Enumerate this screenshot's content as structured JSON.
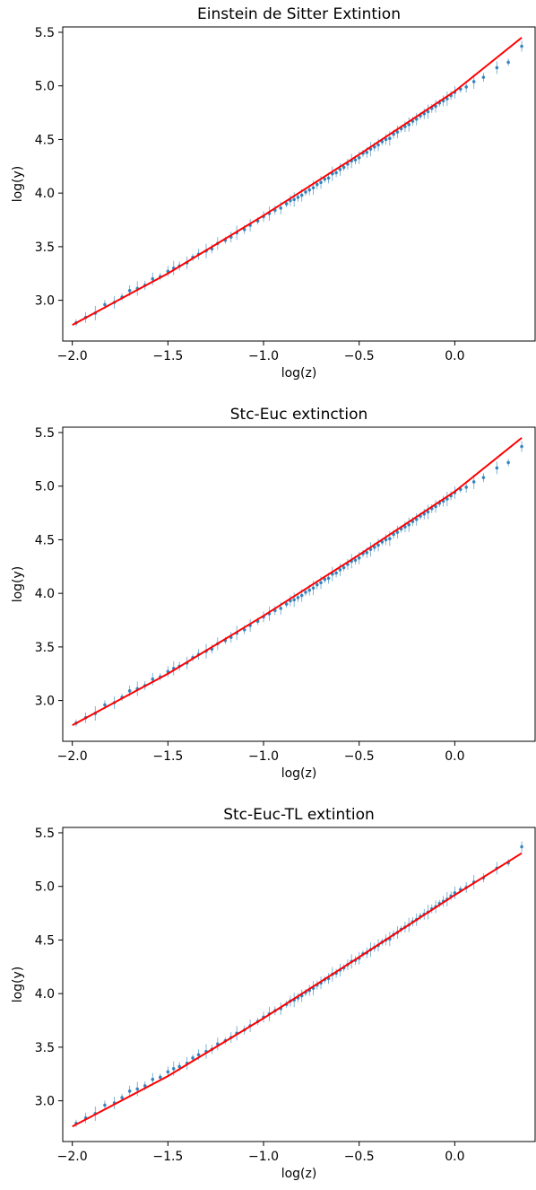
{
  "colors": {
    "points": "#1f77b4",
    "fit": "#ff0000",
    "axes": "#000000"
  },
  "chart_data": [
    {
      "type": "scatter",
      "title": "Einstein de Sitter Extintion",
      "xlabel": "log(z)",
      "ylabel": "log(y)",
      "xlim": [
        -2.05,
        0.42
      ],
      "ylim": [
        2.62,
        5.55
      ],
      "xticks": [
        -2.0,
        -1.5,
        -1.0,
        -0.5,
        0.0
      ],
      "xtick_labels": [
        "−2.0",
        "−1.5",
        "−1.0",
        "−0.5",
        "0.0"
      ],
      "yticks": [
        3.0,
        3.5,
        4.0,
        4.5,
        5.0,
        5.5
      ],
      "ytick_labels": [
        "3.0",
        "3.5",
        "4.0",
        "4.5",
        "5.0",
        "5.5"
      ],
      "grid": false,
      "legend": "none",
      "series": [
        {
          "kind": "errorbar-points",
          "x": [
            -1.98,
            -1.93,
            -1.88,
            -1.83,
            -1.78,
            -1.74,
            -1.7,
            -1.66,
            -1.62,
            -1.58,
            -1.54,
            -1.5,
            -1.47,
            -1.44,
            -1.4,
            -1.37,
            -1.34,
            -1.3,
            -1.27,
            -1.24,
            -1.2,
            -1.17,
            -1.14,
            -1.1,
            -1.07,
            -1.03,
            -1.0,
            -0.97,
            -0.94,
            -0.91,
            -0.88,
            -0.86,
            -0.84,
            -0.82,
            -0.8,
            -0.78,
            -0.76,
            -0.74,
            -0.72,
            -0.7,
            -0.68,
            -0.66,
            -0.64,
            -0.62,
            -0.6,
            -0.58,
            -0.56,
            -0.54,
            -0.52,
            -0.5,
            -0.48,
            -0.46,
            -0.44,
            -0.42,
            -0.4,
            -0.38,
            -0.36,
            -0.34,
            -0.32,
            -0.3,
            -0.28,
            -0.26,
            -0.24,
            -0.22,
            -0.2,
            -0.18,
            -0.16,
            -0.14,
            -0.12,
            -0.1,
            -0.08,
            -0.06,
            -0.04,
            -0.02,
            0.0,
            0.03,
            0.06,
            0.1,
            0.15,
            0.22,
            0.28,
            0.35
          ],
          "y": [
            2.79,
            2.84,
            2.88,
            2.96,
            2.98,
            3.03,
            3.09,
            3.11,
            3.14,
            3.2,
            3.22,
            3.27,
            3.3,
            3.32,
            3.35,
            3.4,
            3.43,
            3.46,
            3.48,
            3.53,
            3.56,
            3.59,
            3.63,
            3.66,
            3.7,
            3.74,
            3.78,
            3.81,
            3.84,
            3.86,
            3.9,
            3.93,
            3.94,
            3.96,
            3.98,
            4.01,
            4.03,
            4.05,
            4.08,
            4.1,
            4.13,
            4.14,
            4.18,
            4.19,
            4.22,
            4.24,
            4.27,
            4.3,
            4.31,
            4.33,
            4.37,
            4.38,
            4.41,
            4.43,
            4.45,
            4.48,
            4.5,
            4.51,
            4.55,
            4.57,
            4.6,
            4.62,
            4.64,
            4.67,
            4.69,
            4.72,
            4.74,
            4.76,
            4.79,
            4.81,
            4.84,
            4.86,
            4.88,
            4.91,
            4.94,
            4.97,
            4.99,
            5.04,
            5.08,
            5.17,
            5.22,
            5.37
          ]
        },
        {
          "kind": "fit-line",
          "x": [
            -2.0,
            -1.5,
            -1.0,
            -0.5,
            0.0,
            0.35
          ],
          "y": [
            2.77,
            3.25,
            3.79,
            4.36,
            4.95,
            5.45
          ]
        }
      ]
    },
    {
      "type": "scatter",
      "title": "Stc-Euc extinction",
      "xlabel": "log(z)",
      "ylabel": "log(y)",
      "xlim": [
        -2.05,
        0.42
      ],
      "ylim": [
        2.62,
        5.55
      ],
      "xticks": [
        -2.0,
        -1.5,
        -1.0,
        -0.5,
        0.0
      ],
      "xtick_labels": [
        "−2.0",
        "−1.5",
        "−1.0",
        "−0.5",
        "0.0"
      ],
      "yticks": [
        3.0,
        3.5,
        4.0,
        4.5,
        5.0,
        5.5
      ],
      "ytick_labels": [
        "3.0",
        "3.5",
        "4.0",
        "4.5",
        "5.0",
        "5.5"
      ],
      "grid": false,
      "legend": "none",
      "series": [
        {
          "kind": "errorbar-points",
          "x": [
            -1.98,
            -1.93,
            -1.88,
            -1.83,
            -1.78,
            -1.74,
            -1.7,
            -1.66,
            -1.62,
            -1.58,
            -1.54,
            -1.5,
            -1.47,
            -1.44,
            -1.4,
            -1.37,
            -1.34,
            -1.3,
            -1.27,
            -1.24,
            -1.2,
            -1.17,
            -1.14,
            -1.1,
            -1.07,
            -1.03,
            -1.0,
            -0.97,
            -0.94,
            -0.91,
            -0.88,
            -0.86,
            -0.84,
            -0.82,
            -0.8,
            -0.78,
            -0.76,
            -0.74,
            -0.72,
            -0.7,
            -0.68,
            -0.66,
            -0.64,
            -0.62,
            -0.6,
            -0.58,
            -0.56,
            -0.54,
            -0.52,
            -0.5,
            -0.48,
            -0.46,
            -0.44,
            -0.42,
            -0.4,
            -0.38,
            -0.36,
            -0.34,
            -0.32,
            -0.3,
            -0.28,
            -0.26,
            -0.24,
            -0.22,
            -0.2,
            -0.18,
            -0.16,
            -0.14,
            -0.12,
            -0.1,
            -0.08,
            -0.06,
            -0.04,
            -0.02,
            0.0,
            0.03,
            0.06,
            0.1,
            0.15,
            0.22,
            0.28,
            0.35
          ],
          "y": [
            2.79,
            2.84,
            2.88,
            2.96,
            2.98,
            3.03,
            3.09,
            3.11,
            3.14,
            3.2,
            3.22,
            3.27,
            3.3,
            3.32,
            3.35,
            3.4,
            3.43,
            3.46,
            3.48,
            3.53,
            3.56,
            3.59,
            3.63,
            3.66,
            3.7,
            3.74,
            3.78,
            3.81,
            3.84,
            3.86,
            3.9,
            3.93,
            3.94,
            3.96,
            3.98,
            4.01,
            4.03,
            4.05,
            4.08,
            4.1,
            4.13,
            4.14,
            4.18,
            4.19,
            4.22,
            4.24,
            4.27,
            4.3,
            4.31,
            4.33,
            4.37,
            4.38,
            4.41,
            4.43,
            4.45,
            4.48,
            4.5,
            4.51,
            4.55,
            4.57,
            4.6,
            4.62,
            4.64,
            4.67,
            4.69,
            4.72,
            4.74,
            4.76,
            4.79,
            4.81,
            4.84,
            4.86,
            4.88,
            4.91,
            4.94,
            4.97,
            4.99,
            5.04,
            5.08,
            5.17,
            5.22,
            5.37
          ]
        },
        {
          "kind": "fit-line",
          "x": [
            -2.0,
            -1.5,
            -1.0,
            -0.5,
            0.0,
            0.35
          ],
          "y": [
            2.77,
            3.25,
            3.79,
            4.36,
            4.95,
            5.45
          ]
        }
      ]
    },
    {
      "type": "scatter",
      "title": "Stc-Euc-TL extintion",
      "xlabel": "log(z)",
      "ylabel": "log(y)",
      "xlim": [
        -2.05,
        0.42
      ],
      "ylim": [
        2.62,
        5.55
      ],
      "xticks": [
        -2.0,
        -1.5,
        -1.0,
        -0.5,
        0.0
      ],
      "xtick_labels": [
        "−2.0",
        "−1.5",
        "−1.0",
        "−0.5",
        "0.0"
      ],
      "yticks": [
        3.0,
        3.5,
        4.0,
        4.5,
        5.0,
        5.5
      ],
      "ytick_labels": [
        "3.0",
        "3.5",
        "4.0",
        "4.5",
        "5.0",
        "5.5"
      ],
      "grid": false,
      "legend": "none",
      "series": [
        {
          "kind": "errorbar-points",
          "x": [
            -1.98,
            -1.93,
            -1.88,
            -1.83,
            -1.78,
            -1.74,
            -1.7,
            -1.66,
            -1.62,
            -1.58,
            -1.54,
            -1.5,
            -1.47,
            -1.44,
            -1.4,
            -1.37,
            -1.34,
            -1.3,
            -1.27,
            -1.24,
            -1.2,
            -1.17,
            -1.14,
            -1.1,
            -1.07,
            -1.03,
            -1.0,
            -0.97,
            -0.94,
            -0.91,
            -0.88,
            -0.86,
            -0.84,
            -0.82,
            -0.8,
            -0.78,
            -0.76,
            -0.74,
            -0.72,
            -0.7,
            -0.68,
            -0.66,
            -0.64,
            -0.62,
            -0.6,
            -0.58,
            -0.56,
            -0.54,
            -0.52,
            -0.5,
            -0.48,
            -0.46,
            -0.44,
            -0.42,
            -0.4,
            -0.38,
            -0.36,
            -0.34,
            -0.32,
            -0.3,
            -0.28,
            -0.26,
            -0.24,
            -0.22,
            -0.2,
            -0.18,
            -0.16,
            -0.14,
            -0.12,
            -0.1,
            -0.08,
            -0.06,
            -0.04,
            -0.02,
            0.0,
            0.03,
            0.06,
            0.1,
            0.15,
            0.22,
            0.28,
            0.35
          ],
          "y": [
            2.79,
            2.84,
            2.88,
            2.96,
            2.98,
            3.03,
            3.09,
            3.11,
            3.14,
            3.2,
            3.22,
            3.27,
            3.3,
            3.32,
            3.35,
            3.4,
            3.43,
            3.46,
            3.48,
            3.53,
            3.56,
            3.59,
            3.63,
            3.66,
            3.7,
            3.74,
            3.78,
            3.81,
            3.84,
            3.86,
            3.9,
            3.93,
            3.94,
            3.96,
            3.98,
            4.01,
            4.03,
            4.05,
            4.08,
            4.1,
            4.13,
            4.14,
            4.18,
            4.19,
            4.22,
            4.24,
            4.27,
            4.3,
            4.31,
            4.33,
            4.37,
            4.38,
            4.41,
            4.43,
            4.45,
            4.48,
            4.5,
            4.51,
            4.55,
            4.57,
            4.6,
            4.62,
            4.64,
            4.67,
            4.69,
            4.72,
            4.74,
            4.76,
            4.79,
            4.81,
            4.84,
            4.86,
            4.88,
            4.91,
            4.94,
            4.97,
            4.99,
            5.04,
            5.08,
            5.17,
            5.22,
            5.37
          ]
        },
        {
          "kind": "fit-line",
          "x": [
            -2.0,
            -1.5,
            -1.0,
            -0.5,
            0.0,
            0.35
          ],
          "y": [
            2.76,
            3.23,
            3.77,
            4.34,
            4.92,
            5.31
          ]
        }
      ]
    }
  ]
}
